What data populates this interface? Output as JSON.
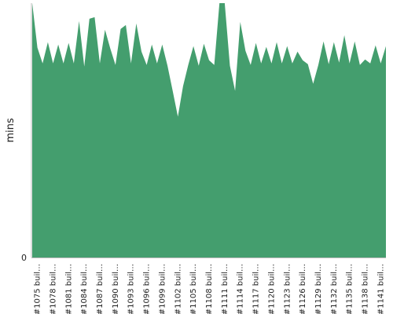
{
  "chart_data": {
    "type": "area",
    "color": "#449e6e",
    "ylabel": "mins",
    "yticks": [
      "0"
    ],
    "ylim": [
      0,
      325
    ],
    "grid": false,
    "xlabels": [
      "#1075 buil…",
      "#1078 buil…",
      "#1081 buil…",
      "#1084 buil…",
      "#1087 buil…",
      "#1090 buil…",
      "#1093 buil…",
      "#1096 buil…",
      "#1099 buil…",
      "#1102 buil…",
      "#1105 buil…",
      "#1108 buil…",
      "#1111 buil…",
      "#1114 buil…",
      "#1117 buil…",
      "#1120 buil…",
      "#1123 buil…",
      "#1126 buil…",
      "#1129 buil…",
      "#1132 buil…",
      "#1135 buil…",
      "#1138 buil…",
      "#1141 buil…"
    ],
    "x_start": 1074,
    "x_end": 1142,
    "values": [
      326,
      268,
      248,
      275,
      248,
      272,
      248,
      274,
      248,
      302,
      244,
      305,
      307,
      248,
      291,
      267,
      246,
      292,
      297,
      248,
      299,
      263,
      246,
      272,
      248,
      272,
      245,
      213,
      180,
      219,
      246,
      270,
      245,
      273,
      252,
      246,
      326,
      326,
      245,
      213,
      301,
      264,
      246,
      274,
      248,
      269,
      248,
      275,
      248,
      270,
      248,
      263,
      252,
      247,
      222,
      246,
      276,
      247,
      275,
      249,
      284,
      248,
      276,
      246,
      253,
      248,
      271,
      248,
      270
    ]
  }
}
